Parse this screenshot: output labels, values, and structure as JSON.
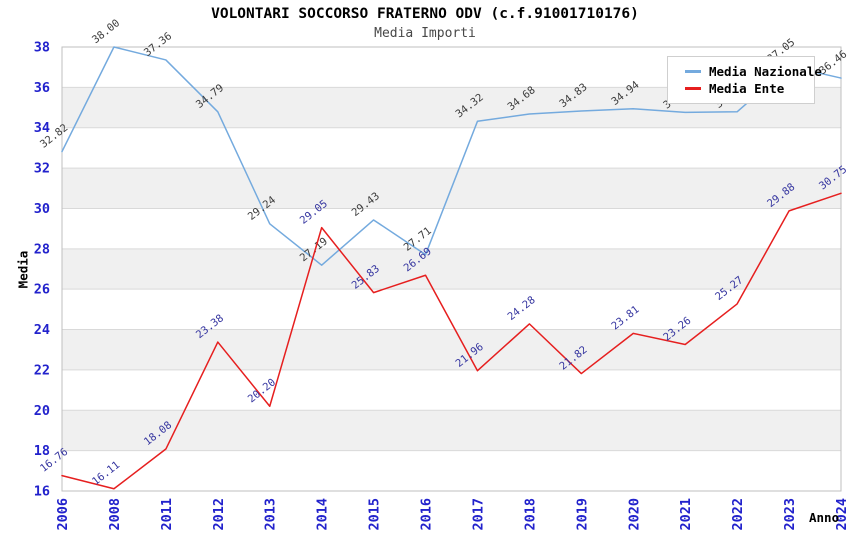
{
  "title": "VOLONTARI SOCCORSO FRATERNO ODV (c.f.91001710176)",
  "subtitle": "Media Importi",
  "chart_data": {
    "type": "line",
    "title": "VOLONTARI SOCCORSO FRATERNO ODV (c.f.91001710176)",
    "subtitle": "Media Importi",
    "xlabel": "Anno",
    "ylabel": "Media",
    "ylim": [
      16,
      38
    ],
    "yticks": [
      16,
      18,
      20,
      22,
      24,
      26,
      28,
      30,
      32,
      34,
      36,
      38
    ],
    "grid": "horizontal gridlines with alternating gray/white bands",
    "legend_position": "top-right",
    "categories": [
      "2006",
      "2008",
      "2011",
      "2012",
      "2013",
      "2014",
      "2015",
      "2016",
      "2017",
      "2018",
      "2019",
      "2020",
      "2021",
      "2022",
      "2023",
      "2024"
    ],
    "series": [
      {
        "name": "Media Nazionale",
        "color": "#74aade",
        "label_color": "#3c3c3c",
        "values": [
          32.82,
          38.0,
          37.36,
          34.79,
          29.24,
          27.19,
          29.43,
          27.71,
          34.32,
          34.68,
          34.83,
          34.94,
          34.76,
          34.79,
          37.05,
          36.46
        ],
        "labels": [
          "32.82",
          "38.00",
          "37.36",
          "34.79",
          "29.24",
          "27.19",
          "29.43",
          "27.71",
          "34.32",
          "34.68",
          "34.83",
          "34.94",
          "34.76",
          "34.79",
          "37.05",
          "36.46"
        ]
      },
      {
        "name": "Media Ente",
        "color": "#e61f1f",
        "label_color": "#3636a0",
        "values": [
          16.76,
          16.11,
          18.08,
          23.38,
          20.2,
          29.05,
          25.83,
          26.69,
          21.96,
          24.28,
          21.82,
          23.81,
          23.26,
          25.27,
          29.88,
          30.75
        ],
        "labels": [
          "16.76",
          "16.11",
          "18.08",
          "23.38",
          "20.20",
          "29.05",
          "25.83",
          "26.69",
          "21.96",
          "24.28",
          "21.82",
          "23.81",
          "23.26",
          "25.27",
          "29.88",
          "30.75"
        ]
      }
    ],
    "colors": {
      "tick_label": "#2222cc",
      "band_gray": "#f0f0f0",
      "gridline": "#d9d9d9",
      "plot_border": "#bfbfbf",
      "background": "#ffffff"
    }
  }
}
